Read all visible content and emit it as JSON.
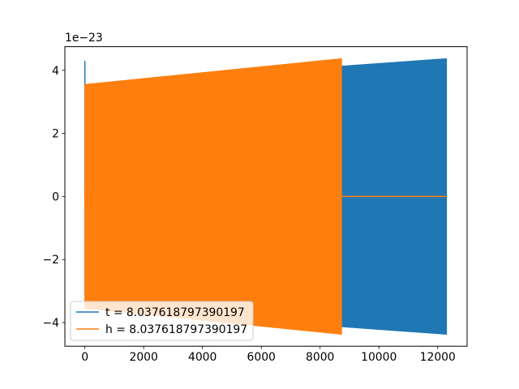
{
  "chart_data": {
    "type": "line",
    "title": "",
    "xlabel": "",
    "ylabel": "",
    "y_offset_label": "1e−23",
    "xlim": [
      -680,
      13000
    ],
    "ylim": [
      -4.75,
      4.75
    ],
    "x_ticks": [
      0,
      2000,
      4000,
      6000,
      8000,
      10000,
      12000
    ],
    "x_tick_labels": [
      "0",
      "2000",
      "4000",
      "6000",
      "8000",
      "10000",
      "12000"
    ],
    "y_ticks": [
      -4,
      -2,
      0,
      2,
      4
    ],
    "y_tick_labels": [
      "−4",
      "−2",
      "0",
      "2",
      "4"
    ],
    "grid": false,
    "legend_position": "lower left",
    "series": [
      {
        "name": "t = 8.037618797390197",
        "color": "#1f77b4",
        "x_start": 0,
        "x_end": 12300,
        "amplitude_start": 3.55,
        "amplitude_end": 4.37,
        "initial_spike": 4.3,
        "note_dense": "oscillation fills envelope"
      },
      {
        "name": "h = 8.037618797390197",
        "color": "#ff7f0e",
        "x_start": 0,
        "x_end": 8730,
        "amplitude_start": 3.55,
        "amplitude_end": 4.37,
        "flat_after": 0,
        "flat_until": 12300
      }
    ]
  }
}
